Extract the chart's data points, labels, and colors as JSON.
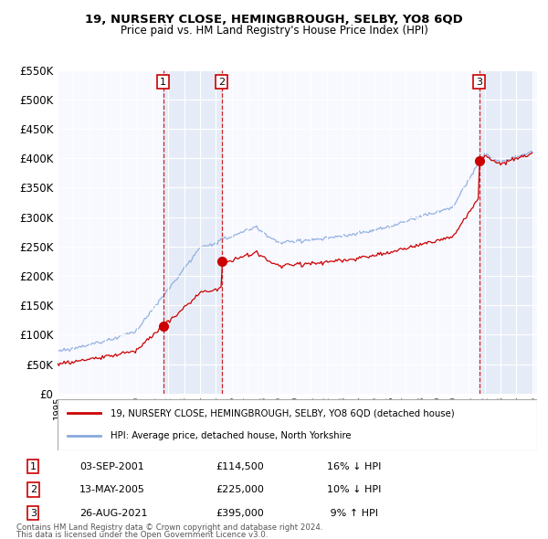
{
  "title": "19, NURSERY CLOSE, HEMINGBROUGH, SELBY, YO8 6QD",
  "subtitle": "Price paid vs. HM Land Registry's House Price Index (HPI)",
  "ylabel_ticks": [
    "£0",
    "£50K",
    "£100K",
    "£150K",
    "£200K",
    "£250K",
    "£300K",
    "£350K",
    "£400K",
    "£450K",
    "£500K",
    "£550K"
  ],
  "ytick_values": [
    0,
    50000,
    100000,
    150000,
    200000,
    250000,
    300000,
    350000,
    400000,
    450000,
    500000,
    550000
  ],
  "x_start_year": 1995,
  "x_end_year": 2025,
  "purchases": [
    {
      "label": "1",
      "date": "03-SEP-2001",
      "price": 114500,
      "x": 2001.67,
      "hpi_note": "16% ↓ HPI"
    },
    {
      "label": "2",
      "date": "13-MAY-2005",
      "price": 225000,
      "x": 2005.36,
      "hpi_note": "10% ↓ HPI"
    },
    {
      "label": "3",
      "date": "26-AUG-2021",
      "price": 395000,
      "x": 2021.65,
      "hpi_note": "9% ↑ HPI"
    }
  ],
  "legend_line1": "19, NURSERY CLOSE, HEMINGBROUGH, SELBY, YO8 6QD (detached house)",
  "legend_line2": "HPI: Average price, detached house, North Yorkshire",
  "footnote1": "Contains HM Land Registry data © Crown copyright and database right 2024.",
  "footnote2": "This data is licensed under the Open Government Licence v3.0.",
  "price_line_color": "#cc0000",
  "hpi_line_color": "#88aadd",
  "bg_color": "#ffffff",
  "plot_bg_color": "#f8f8ff",
  "grid_color": "#cccccc",
  "vline_color": "#cc0000",
  "shade_color": "#dde8f5",
  "hatch_color": "#cccccc"
}
